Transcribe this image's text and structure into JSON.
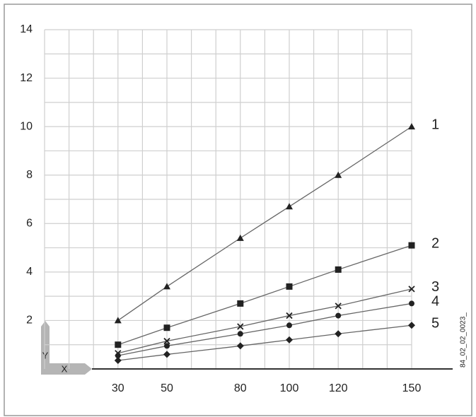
{
  "chart_data": {
    "type": "line",
    "x": [
      30,
      50,
      80,
      100,
      120,
      150
    ],
    "xlim": [
      0,
      150
    ],
    "ylim": [
      0,
      14
    ],
    "xticks": [
      30,
      50,
      80,
      100,
      120,
      150
    ],
    "yticks": [
      2,
      4,
      6,
      8,
      10,
      12,
      14
    ],
    "xgrid": [
      0,
      10,
      20,
      30,
      40,
      50,
      60,
      70,
      80,
      90,
      100,
      110,
      120,
      130,
      140,
      150
    ],
    "ygrid": [
      1,
      2,
      3,
      4,
      5,
      6,
      7,
      8,
      9,
      10,
      11,
      12,
      13,
      14
    ],
    "grid": true,
    "axis_icon": {
      "y": "Y",
      "x": "X"
    },
    "code": "84_02_02_0023_",
    "series": [
      {
        "name": "1",
        "marker": "triangle",
        "color": "#222",
        "values": [
          2,
          3.4,
          5.4,
          6.7,
          8,
          10
        ]
      },
      {
        "name": "2",
        "marker": "square",
        "color": "#222",
        "values": [
          1,
          1.7,
          2.7,
          3.4,
          4.1,
          5.1
        ]
      },
      {
        "name": "3",
        "marker": "x",
        "color": "#222",
        "values": [
          0.65,
          1.15,
          1.75,
          2.2,
          2.6,
          3.3
        ]
      },
      {
        "name": "4",
        "marker": "circle",
        "color": "#222",
        "values": [
          0.55,
          0.95,
          1.45,
          1.8,
          2.2,
          2.7
        ]
      },
      {
        "name": "5",
        "marker": "diamond",
        "color": "#222",
        "values": [
          0.35,
          0.6,
          0.95,
          1.2,
          1.45,
          1.8
        ]
      }
    ]
  }
}
